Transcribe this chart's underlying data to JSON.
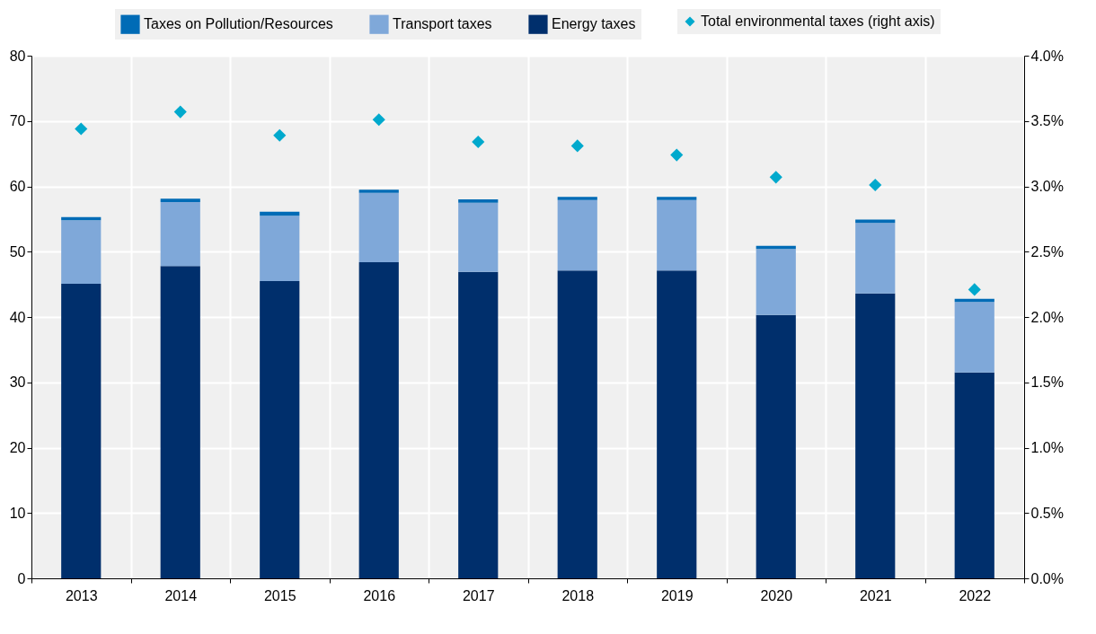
{
  "chart_data": {
    "type": "bar",
    "stacked": true,
    "categories": [
      "2013",
      "2014",
      "2015",
      "2016",
      "2017",
      "2018",
      "2019",
      "2020",
      "2021",
      "2022"
    ],
    "series": [
      {
        "name": "Energy taxes",
        "color": "#002f6c",
        "values": [
          45.1,
          47.8,
          45.5,
          48.4,
          46.9,
          47.1,
          47.1,
          40.3,
          43.6,
          31.5
        ]
      },
      {
        "name": "Transport taxes",
        "color": "#7fa8d9",
        "values": [
          9.7,
          9.8,
          10.0,
          10.6,
          10.6,
          10.8,
          10.8,
          10.1,
          10.8,
          10.8
        ]
      },
      {
        "name": "Taxes on Pollution/Resources",
        "color": "#006bb6",
        "values": [
          0.5,
          0.5,
          0.6,
          0.5,
          0.5,
          0.5,
          0.5,
          0.5,
          0.5,
          0.5
        ]
      },
      {
        "name": "Total environmental taxes (right axis)",
        "color": "#00a9cd",
        "type": "scatter",
        "axis": "y2",
        "marker": "diamond",
        "values": [
          3.44,
          3.57,
          3.39,
          3.51,
          3.34,
          3.31,
          3.24,
          3.07,
          3.01,
          2.21
        ]
      }
    ],
    "ylim": [
      0,
      80
    ],
    "yticks": [
      0,
      10,
      20,
      30,
      40,
      50,
      60,
      70,
      80
    ],
    "y2lim": [
      0,
      4
    ],
    "y2ticks": [
      {
        "value": 0,
        "label": "0.0%"
      },
      {
        "value": 0.5,
        "label": "0.5%"
      },
      {
        "value": 1,
        "label": "1.0%"
      },
      {
        "value": 1.5,
        "label": "1.5%"
      },
      {
        "value": 2,
        "label": "2.0%"
      },
      {
        "value": 2.5,
        "label": "2.5%"
      },
      {
        "value": 3,
        "label": "3.0%"
      },
      {
        "value": 3.5,
        "label": "3.5%"
      },
      {
        "value": 4,
        "label": "4.0%"
      }
    ],
    "grid": true,
    "legend": "top"
  }
}
